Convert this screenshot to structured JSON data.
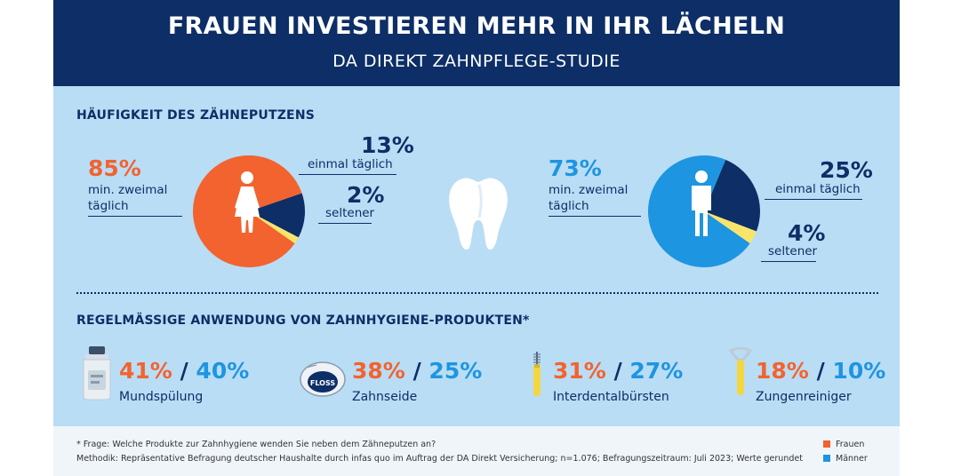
{
  "header": {
    "title": "FRAUEN INVESTIEREN MEHR IN IHR LÄCHELN",
    "subtitle": "DA DIREKT ZAHNPFLEGE-STUDIE"
  },
  "section1": {
    "title": "HÄUFIGKEIT DES ZÄHNEPUTZENS"
  },
  "section2": {
    "title": "REGELMÄSSIGE ANWENDUNG VON ZAHNHYGIENE-PRODUKTEN*"
  },
  "colors": {
    "frauen": "#f2632f",
    "maenner": "#1e95e0",
    "navy": "#0d2e66",
    "yellow": "#f7e56b",
    "panel_bg": "#b9ddf5",
    "header_bg": "#0d2e66"
  },
  "icons": [
    "female-figure-icon",
    "male-figure-icon",
    "tooth-icon",
    "mouthwash-bottle-icon",
    "floss-icon",
    "interdental-brush-icon",
    "tongue-cleaner-icon"
  ],
  "chart_data": [
    {
      "type": "pie",
      "group": "women",
      "slices": [
        {
          "label": "min. zweimal täglich",
          "value": 85,
          "display": "85%",
          "color": "#f2632f"
        },
        {
          "label": "einmal täglich",
          "value": 13,
          "display": "13%",
          "color": "#0d2e66"
        },
        {
          "label": "seltener",
          "value": 2,
          "display": "2%",
          "color": "#f7e56b"
        }
      ]
    },
    {
      "type": "pie",
      "group": "men",
      "slices": [
        {
          "label": "min. zweimal täglich",
          "value": 73,
          "display": "73%",
          "color": "#1e95e0"
        },
        {
          "label": "einmal täglich",
          "value": 25,
          "display": "25%",
          "color": "#0d2e66"
        },
        {
          "label": "seltener",
          "value": 4,
          "display": "4%",
          "color": "#f7e56b"
        }
      ]
    },
    {
      "type": "bar",
      "categories": [
        "Mundspülung",
        "Zahnseide",
        "Interdentalbürsten",
        "Zungenreiniger"
      ],
      "series": [
        {
          "name": "Frauen",
          "values": [
            41,
            38,
            31,
            18
          ],
          "labels": [
            "41%",
            "38%",
            "31%",
            "18%"
          ]
        },
        {
          "name": "Männer",
          "values": [
            40,
            25,
            27,
            10
          ],
          "labels": [
            "40%",
            "25%",
            "27%",
            "10%"
          ]
        }
      ],
      "separator": "/"
    }
  ],
  "floss_label": "FLOSS",
  "footer": {
    "note": "* Frage: Welche Produkte zur Zahnhygiene wenden Sie neben dem Zähneputzen an?",
    "method": "Methodik: Repräsentative Befragung deutscher Haushalte durch infas quo im Auftrag der DA Direkt Versicherung; n=1.076; Befragungszeitraum: Juli 2023; Werte gerundet"
  },
  "legend": [
    {
      "label": "Frauen",
      "color": "#f2632f"
    },
    {
      "label": "Männer",
      "color": "#1e95e0"
    }
  ]
}
